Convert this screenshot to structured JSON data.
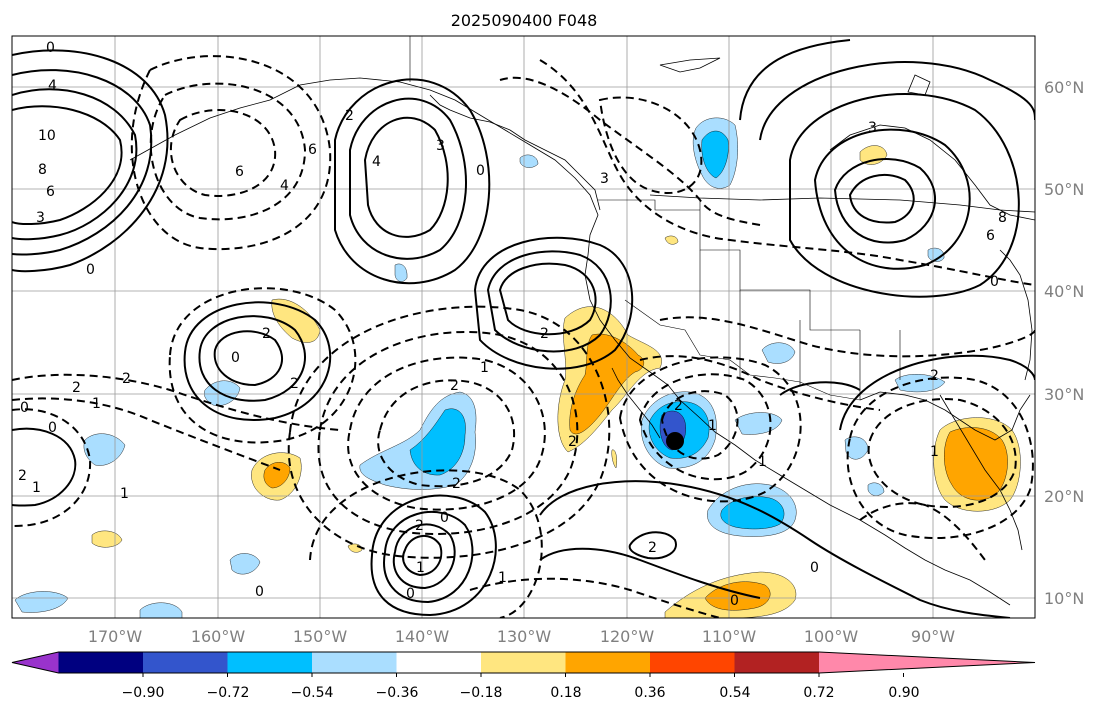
{
  "title": "2025090400 F048",
  "map": {
    "lon_labels": [
      "170°W",
      "160°W",
      "150°W",
      "140°W",
      "130°W",
      "120°W",
      "110°W",
      "100°W",
      "90°W"
    ],
    "lat_labels": [
      "60°N",
      "50°N",
      "40°N",
      "30°N",
      "20°N",
      "10°N"
    ],
    "contour_labels": [
      "0",
      "4",
      "10",
      "8",
      "6",
      "3",
      "0",
      "2",
      "6",
      "4",
      "6",
      "4",
      "3",
      "0",
      "3",
      "2",
      "2",
      "0",
      "2",
      "2",
      "2",
      "1",
      "2",
      "0",
      "1",
      "0",
      "2",
      "1",
      "2",
      "1",
      "2",
      "0",
      "1",
      "1",
      "0",
      "0",
      "2",
      "2",
      "1",
      "1",
      "2",
      "0",
      "8",
      "6",
      "3",
      "0",
      "2",
      "1",
      "0"
    ]
  },
  "colorbar": {
    "tick_labels": [
      "−0.90",
      "−0.72",
      "−0.54",
      "−0.36",
      "−0.18",
      "0.18",
      "0.36",
      "0.54",
      "0.72",
      "0.90"
    ],
    "colors": [
      "#9933cc",
      "#000080",
      "#3355cc",
      "#00bfff",
      "#aadeff",
      "#ffffff",
      "#ffe680",
      "#ffa500",
      "#ff4500",
      "#b22222",
      "#ff88aa"
    ]
  },
  "palette": {
    "neg_strong": "#3355cc",
    "neg_mid": "#00bfff",
    "neg_weak": "#aadeff",
    "pos_weak": "#ffe680",
    "pos_mid": "#ffa500"
  }
}
